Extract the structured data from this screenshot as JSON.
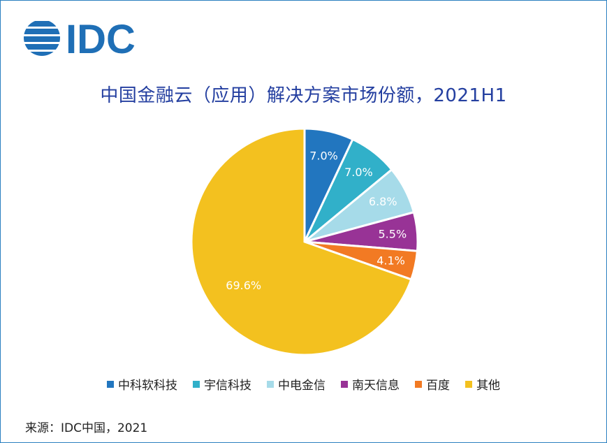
{
  "logo_text": "IDC",
  "chart_data": {
    "type": "pie",
    "title": "中国金融云（应用）解决方案市场份额，2021H1",
    "labels": [
      "中科软科技",
      "宇信科技",
      "中电金信",
      "南天信息",
      "百度",
      "其他"
    ],
    "values": [
      7.0,
      7.0,
      6.8,
      5.5,
      4.1,
      69.6
    ],
    "value_labels": [
      "7.0%",
      "7.0%",
      "6.8%",
      "5.5%",
      "4.1%",
      "69.6%"
    ],
    "colors": [
      "#2276bf",
      "#31b0c9",
      "#a6dbe9",
      "#983396",
      "#f27a23",
      "#f3c11f"
    ],
    "legend_position": "bottom"
  },
  "source": "来源：IDC中国，2021"
}
